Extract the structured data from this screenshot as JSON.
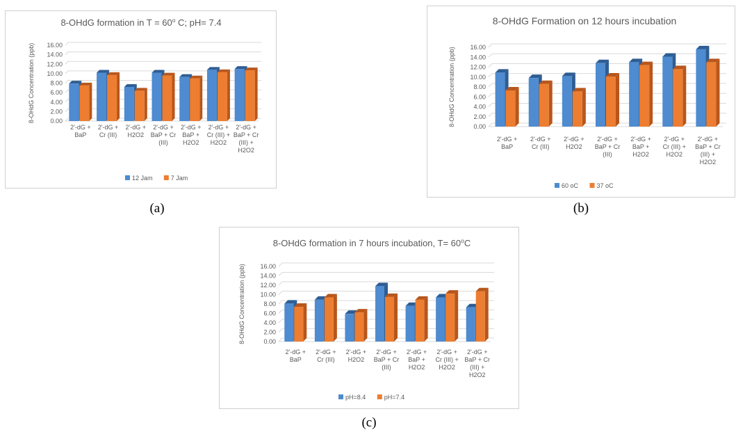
{
  "colors": {
    "series1": "#4e8bd0",
    "series1_dark": "#2e5d93",
    "series2": "#ed7d31",
    "series2_dark": "#b8561b",
    "grid": "#d9d9d9",
    "text": "#595959"
  },
  "captions": {
    "a": "(a)",
    "b": "(b)",
    "c": "(c)"
  },
  "chart_data": [
    {
      "type": "bar",
      "title": "8-OHdG formation in T = 60",
      "title_sup": "o",
      "title_rest": " C; pH= 7.4",
      "ylabel": "8-OHdG Concentration (ppb)",
      "xlabel": "",
      "ylim": [
        0,
        16
      ],
      "yticks": [
        "0.00",
        "2.00",
        "4.00",
        "6.00",
        "8.00",
        "10.00",
        "12.00",
        "14.00",
        "16.00"
      ],
      "grid": true,
      "legend_position": "bottom",
      "categories": [
        [
          "2'-dG +",
          "BaP"
        ],
        [
          "2'-dG +",
          "Cr (III)"
        ],
        [
          "2'-dG +",
          "H2O2"
        ],
        [
          "2'-dG +",
          "BaP + Cr",
          "(III)"
        ],
        [
          "2'-dG +",
          "BaP +",
          "H2O2"
        ],
        [
          "2'-dG +",
          "Cr (III) +",
          "H2O2"
        ],
        [
          "2'-dG +",
          "BaP + Cr",
          "(III) +",
          "H2O2"
        ]
      ],
      "series": [
        {
          "name": "12 Jam",
          "values": [
            7.9,
            10.2,
            7.2,
            10.2,
            9.3,
            10.8,
            11.0
          ]
        },
        {
          "name": "7 Jam",
          "values": [
            7.5,
            9.7,
            6.4,
            9.6,
            9.0,
            10.3,
            10.7
          ]
        }
      ]
    },
    {
      "type": "bar",
      "title": "8-OHdG Formation on 12 hours incubation",
      "title_sup": "",
      "title_rest": "",
      "ylabel": "8-OHdG Concentration (ppb)",
      "xlabel": "",
      "ylim": [
        0,
        16
      ],
      "yticks": [
        "0.00",
        "2.00",
        "4.00",
        "6.00",
        "8.00",
        "10.00",
        "12.00",
        "14.00",
        "16.00"
      ],
      "grid": true,
      "legend_position": "bottom",
      "categories": [
        [
          "2'-dG +",
          "BaP"
        ],
        [
          "2'-dG +",
          "Cr (III)"
        ],
        [
          "2'-dG +",
          "H2O2"
        ],
        [
          "2'-dG +",
          "BaP + Cr",
          "(III)"
        ],
        [
          "2'-dG +",
          "BaP +",
          "H2O2"
        ],
        [
          "2'-dG +",
          "Cr (III) +",
          "H2O2"
        ],
        [
          "2'-dG +",
          "BaP + Cr",
          "(III) +",
          "H2O2"
        ]
      ],
      "series": [
        {
          "name": "60 oC",
          "values": [
            10.9,
            9.8,
            10.2,
            12.8,
            13.0,
            14.1,
            15.6
          ]
        },
        {
          "name": "37 oC",
          "values": [
            7.3,
            8.6,
            7.1,
            10.1,
            12.4,
            11.6,
            13.0
          ]
        }
      ]
    },
    {
      "type": "bar",
      "title": "8-OHdG formation in 7 hours incubation, T= 60",
      "title_sup": "o",
      "title_rest": "C",
      "ylabel": "8-OHdG Concentration (ppb)",
      "xlabel": "",
      "ylim": [
        0,
        16
      ],
      "yticks": [
        "0.00",
        "2.00",
        "4.00",
        "6.00",
        "8.00",
        "10.00",
        "12.00",
        "14.00",
        "16.00"
      ],
      "grid": true,
      "legend_position": "bottom-left",
      "categories": [
        [
          "2'-dG +",
          "BaP"
        ],
        [
          "2'-dG +",
          "Cr (III)"
        ],
        [
          "2'-dG +",
          "H2O2"
        ],
        [
          "2'-dG +",
          "BaP + Cr",
          "(III)"
        ],
        [
          "2'-dG +",
          "BaP +",
          "H2O2"
        ],
        [
          "2'-dG +",
          "Cr (III) +",
          "H2O2"
        ],
        [
          "2'-dG +",
          "BaP + Cr",
          "(III) +",
          "H2O2"
        ]
      ],
      "series": [
        {
          "name": "pH=8.4",
          "values": [
            8.1,
            8.9,
            5.9,
            11.8,
            7.6,
            9.4,
            7.3
          ]
        },
        {
          "name": "pH=7.4",
          "values": [
            7.4,
            9.4,
            6.2,
            9.5,
            8.9,
            10.2,
            10.7
          ]
        }
      ]
    }
  ]
}
